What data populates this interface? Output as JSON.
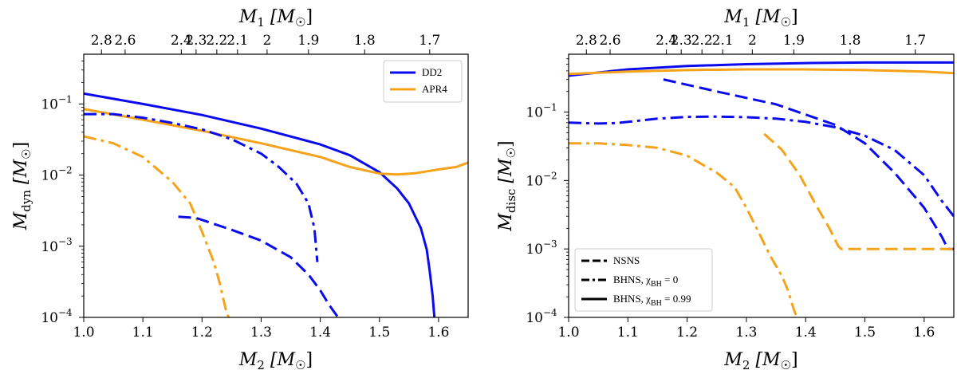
{
  "colors": {
    "dd2": "#0a0aee",
    "apr4": "#f5a31a",
    "axis": "#000000",
    "legend_line": "#000000"
  },
  "chart_data": [
    {
      "type": "line",
      "id": "left",
      "yscale": "log",
      "xlim": [
        1.0,
        1.65
      ],
      "ylim": [
        0.0001,
        0.5
      ],
      "x_ticks": [
        "1.0",
        "1.1",
        "1.2",
        "1.3",
        "1.4",
        "1.5",
        "1.6"
      ],
      "y_ticks": [
        {
          "value": 0.0001,
          "base": "10",
          "exp": "−4"
        },
        {
          "value": 0.001,
          "base": "10",
          "exp": "−3"
        },
        {
          "value": 0.01,
          "base": "10",
          "exp": "−2"
        },
        {
          "value": 0.1,
          "base": "10",
          "exp": "−1"
        }
      ],
      "top_ticks": [
        "2.8",
        "2.6",
        "2.4",
        "2.3",
        "2.2",
        "2.1",
        "2",
        "1.9",
        "1.8",
        "1.7"
      ],
      "top_tick_positions_m2": [
        1.03,
        1.07,
        1.165,
        1.19,
        1.225,
        1.26,
        1.31,
        1.38,
        1.475,
        1.585
      ],
      "xlabel": "M₂ [M☉]",
      "ylabel": "M_dyn [M☉]",
      "toplabel": "M₁ [M☉]",
      "xlabel_text": {
        "main": "M",
        "sub": "2",
        "unit": " [M",
        "sun": "☉",
        "close": "]"
      },
      "ylabel_text": {
        "main": "M",
        "sub": "dyn",
        "unit": " [M",
        "sun": "☉",
        "close": "]"
      },
      "toplabel_text": {
        "main": "M",
        "sub": "1",
        "unit": " [M",
        "sun": "☉",
        "close": "]"
      },
      "legend": {
        "position": "top-right",
        "entries": [
          {
            "label": "DD2",
            "color_key": "dd2",
            "style": "solid"
          },
          {
            "label": "APR4",
            "color_key": "apr4",
            "style": "solid"
          }
        ]
      },
      "series": [
        {
          "name": "DD2 BHNS chi=0.99",
          "color_key": "dd2",
          "style": "solid",
          "x": [
            1.0,
            1.1,
            1.2,
            1.3,
            1.4,
            1.45,
            1.5,
            1.53,
            1.55,
            1.57,
            1.58,
            1.585,
            1.59,
            1.593
          ],
          "y": [
            0.14,
            0.1,
            0.07,
            0.045,
            0.027,
            0.019,
            0.011,
            0.0065,
            0.004,
            0.0018,
            0.0009,
            0.00045,
            0.0002,
            0.0001
          ]
        },
        {
          "name": "APR4 BHNS chi=0.99",
          "color_key": "apr4",
          "style": "solid",
          "x": [
            1.0,
            1.1,
            1.2,
            1.3,
            1.4,
            1.45,
            1.5,
            1.53,
            1.56,
            1.6,
            1.63,
            1.65
          ],
          "y": [
            0.085,
            0.06,
            0.042,
            0.028,
            0.018,
            0.013,
            0.0105,
            0.0102,
            0.0106,
            0.012,
            0.013,
            0.015
          ]
        },
        {
          "name": "DD2 BHNS chi=0",
          "color_key": "dd2",
          "style": "dashdot",
          "x": [
            1.0,
            1.05,
            1.1,
            1.15,
            1.2,
            1.25,
            1.3,
            1.33,
            1.36,
            1.38,
            1.39,
            1.395
          ],
          "y": [
            0.072,
            0.072,
            0.064,
            0.054,
            0.044,
            0.032,
            0.02,
            0.013,
            0.0075,
            0.004,
            0.0018,
            0.0006
          ]
        },
        {
          "name": "APR4 BHNS chi=0",
          "color_key": "apr4",
          "style": "dashdot",
          "x": [
            1.0,
            1.05,
            1.1,
            1.15,
            1.18,
            1.2,
            1.22,
            1.23,
            1.24,
            1.245
          ],
          "y": [
            0.035,
            0.028,
            0.018,
            0.008,
            0.004,
            0.0016,
            0.0006,
            0.0003,
            0.00013,
            0.0001
          ]
        },
        {
          "name": "DD2 NSNS",
          "color_key": "dd2",
          "style": "dashed",
          "x": [
            1.16,
            1.19,
            1.25,
            1.3,
            1.35,
            1.38,
            1.4,
            1.415,
            1.43
          ],
          "y": [
            0.0026,
            0.0025,
            0.0017,
            0.0012,
            0.0007,
            0.0004,
            0.00024,
            0.00015,
            0.0001
          ]
        }
      ]
    },
    {
      "type": "line",
      "id": "right",
      "yscale": "log",
      "xlim": [
        1.0,
        1.65
      ],
      "ylim": [
        0.0001,
        0.7
      ],
      "x_ticks": [
        "1.0",
        "1.1",
        "1.2",
        "1.3",
        "1.4",
        "1.5",
        "1.6"
      ],
      "y_ticks": [
        {
          "value": 0.0001,
          "base": "10",
          "exp": "−4"
        },
        {
          "value": 0.001,
          "base": "10",
          "exp": "−3"
        },
        {
          "value": 0.01,
          "base": "10",
          "exp": "−2"
        },
        {
          "value": 0.1,
          "base": "10",
          "exp": "−1"
        }
      ],
      "top_ticks": [
        "2.8",
        "2.6",
        "2.4",
        "2.3",
        "2.2",
        "2.1",
        "2",
        "1.9",
        "1.8",
        "1.7"
      ],
      "top_tick_positions_m2": [
        1.03,
        1.07,
        1.165,
        1.19,
        1.225,
        1.26,
        1.31,
        1.38,
        1.475,
        1.585
      ],
      "xlabel": "M₂ [M☉]",
      "ylabel": "M_disc [M☉]",
      "toplabel": "M₁ [M☉]",
      "xlabel_text": {
        "main": "M",
        "sub": "2",
        "unit": " [M",
        "sun": "☉",
        "close": "]"
      },
      "ylabel_text": {
        "main": "M",
        "sub": "disc",
        "unit": " [M",
        "sun": "☉",
        "close": "]"
      },
      "toplabel_text": {
        "main": "M",
        "sub": "1",
        "unit": " [M",
        "sun": "☉",
        "close": "]"
      },
      "legend": {
        "position": "bottom-left",
        "entries": [
          {
            "label": "NSNS",
            "style": "dashed"
          },
          {
            "label": "BHNS, χ",
            "sub": "BH",
            "suffix": " = 0",
            "style": "dashdot"
          },
          {
            "label": "BHNS, χ",
            "sub": "BH",
            "suffix": " = 0.99",
            "style": "solid"
          }
        ]
      },
      "series": [
        {
          "name": "DD2 BHNS chi=0.99",
          "color_key": "dd2",
          "style": "solid",
          "x": [
            1.0,
            1.1,
            1.2,
            1.3,
            1.4,
            1.5,
            1.6,
            1.65
          ],
          "y": [
            0.34,
            0.42,
            0.47,
            0.5,
            0.52,
            0.53,
            0.53,
            0.53
          ]
        },
        {
          "name": "APR4 BHNS chi=0.99",
          "color_key": "apr4",
          "style": "solid",
          "x": [
            1.0,
            1.1,
            1.2,
            1.3,
            1.4,
            1.5,
            1.6,
            1.65
          ],
          "y": [
            0.36,
            0.39,
            0.41,
            0.42,
            0.42,
            0.41,
            0.39,
            0.37
          ]
        },
        {
          "name": "DD2 BHNS chi=0",
          "color_key": "dd2",
          "style": "dashdot",
          "x": [
            1.0,
            1.05,
            1.08,
            1.15,
            1.2,
            1.25,
            1.3,
            1.35,
            1.4,
            1.45,
            1.5,
            1.55,
            1.6,
            1.63,
            1.65
          ],
          "y": [
            0.07,
            0.068,
            0.069,
            0.08,
            0.085,
            0.086,
            0.084,
            0.08,
            0.072,
            0.06,
            0.045,
            0.028,
            0.012,
            0.005,
            0.003
          ]
        },
        {
          "name": "APR4 BHNS chi=0",
          "color_key": "apr4",
          "style": "dashdot",
          "x": [
            1.0,
            1.05,
            1.1,
            1.15,
            1.2,
            1.25,
            1.28,
            1.3,
            1.32,
            1.34,
            1.36,
            1.37,
            1.38,
            1.385
          ],
          "y": [
            0.035,
            0.035,
            0.033,
            0.03,
            0.023,
            0.013,
            0.008,
            0.004,
            0.0018,
            0.0008,
            0.0004,
            0.00025,
            0.00013,
            0.0001
          ]
        },
        {
          "name": "DD2 NSNS",
          "color_key": "dd2",
          "style": "dashed",
          "x": [
            1.16,
            1.25,
            1.35,
            1.45,
            1.5,
            1.55,
            1.6,
            1.63,
            1.64,
            1.65
          ],
          "y": [
            0.3,
            0.2,
            0.13,
            0.065,
            0.035,
            0.013,
            0.004,
            0.0015,
            0.001,
            0.001
          ]
        },
        {
          "name": "APR4 NSNS",
          "color_key": "apr4",
          "style": "dashed",
          "x": [
            1.33,
            1.36,
            1.39,
            1.42,
            1.44,
            1.455,
            1.46,
            1.5,
            1.55,
            1.6,
            1.65
          ],
          "y": [
            0.048,
            0.028,
            0.012,
            0.004,
            0.002,
            0.0011,
            0.001,
            0.001,
            0.001,
            0.001,
            0.001
          ]
        }
      ]
    }
  ]
}
